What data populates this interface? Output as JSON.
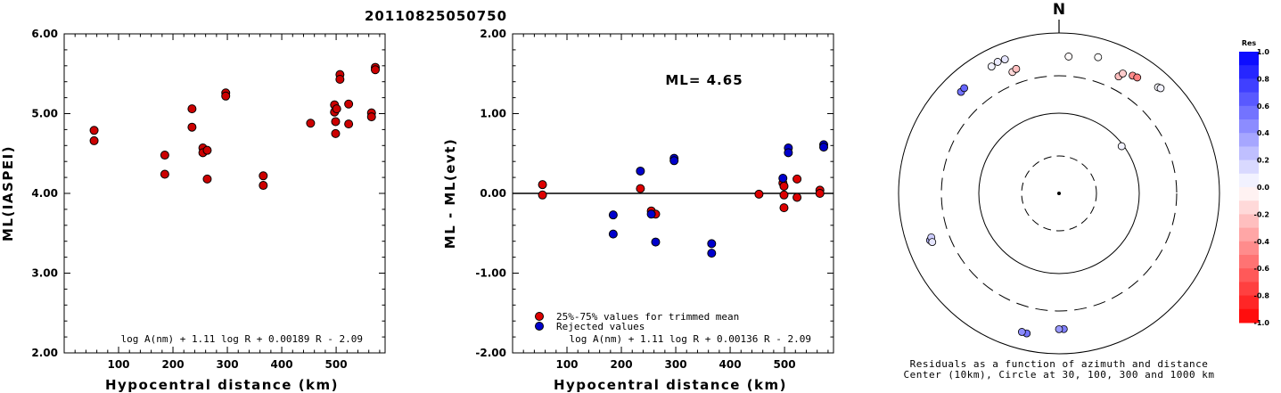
{
  "title": "20110825050750",
  "chart_data": [
    {
      "type": "scatter",
      "ylabel": "ML(IASPEI)",
      "xlabel": "Hypocentral distance (km)",
      "xlim": [
        0,
        590
      ],
      "ylim": [
        2.0,
        6.0
      ],
      "xticks": [
        100,
        200,
        300,
        400,
        500
      ],
      "xticklabels": [
        "100",
        "200",
        "300",
        "400",
        "500"
      ],
      "yticks": [
        2,
        3,
        4,
        5,
        6
      ],
      "yticklabels": [
        "2.00",
        "3.00",
        "4.00",
        "5.00",
        "6.00"
      ],
      "formula": "log A(nm) + 1.11 log R + 0.00189 R - 2.09",
      "marker_color": "#cc0000",
      "points": [
        {
          "x": 55,
          "y": 4.79
        },
        {
          "x": 55,
          "y": 4.66
        },
        {
          "x": 185,
          "y": 4.48
        },
        {
          "x": 185,
          "y": 4.24
        },
        {
          "x": 235,
          "y": 5.06
        },
        {
          "x": 235,
          "y": 4.83
        },
        {
          "x": 255,
          "y": 4.57
        },
        {
          "x": 255,
          "y": 4.51
        },
        {
          "x": 263,
          "y": 4.54
        },
        {
          "x": 263,
          "y": 4.18
        },
        {
          "x": 297,
          "y": 5.26
        },
        {
          "x": 297,
          "y": 5.22
        },
        {
          "x": 366,
          "y": 4.22
        },
        {
          "x": 366,
          "y": 4.1
        },
        {
          "x": 453,
          "y": 4.88
        },
        {
          "x": 497,
          "y": 5.11
        },
        {
          "x": 497,
          "y": 5.02
        },
        {
          "x": 499,
          "y": 4.9
        },
        {
          "x": 499,
          "y": 4.75
        },
        {
          "x": 501,
          "y": 5.06
        },
        {
          "x": 507,
          "y": 5.49
        },
        {
          "x": 507,
          "y": 5.43
        },
        {
          "x": 523,
          "y": 5.12
        },
        {
          "x": 523,
          "y": 4.87
        },
        {
          "x": 565,
          "y": 5.01
        },
        {
          "x": 565,
          "y": 4.96
        },
        {
          "x": 572,
          "y": 5.58
        },
        {
          "x": 572,
          "y": 5.55
        }
      ]
    },
    {
      "type": "scatter",
      "ylabel": "ML - ML(evt)",
      "xlabel": "Hypocentral distance (km)",
      "xlim": [
        0,
        590
      ],
      "ylim": [
        -2.0,
        2.0
      ],
      "xticks": [
        100,
        200,
        300,
        400,
        500
      ],
      "xticklabels": [
        "100",
        "200",
        "300",
        "400",
        "500"
      ],
      "yticks": [
        -2,
        -1,
        0,
        1,
        2
      ],
      "yticklabels": [
        "-2.00",
        "-1.00",
        "0.00",
        "1.00",
        "2.00"
      ],
      "annotation": "ML= 4.65",
      "formula": "log A(nm) + 1.11 log R + 0.00136 R - 2.09",
      "legend": [
        {
          "label": "25%-75% values for trimmed mean",
          "color": "#dd0000"
        },
        {
          "label": "Rejected values",
          "color": "#0000cc"
        }
      ],
      "legend_position": "bottom-left",
      "series": [
        {
          "color": "#dd0000",
          "points": [
            {
              "x": 55,
              "y": 0.11
            },
            {
              "x": 55,
              "y": -0.02
            },
            {
              "x": 235,
              "y": 0.06
            },
            {
              "x": 255,
              "y": -0.22
            },
            {
              "x": 263,
              "y": -0.26
            },
            {
              "x": 453,
              "y": -0.01
            },
            {
              "x": 497,
              "y": 0.13
            },
            {
              "x": 499,
              "y": 0.09
            },
            {
              "x": 499,
              "y": -0.02
            },
            {
              "x": 499,
              "y": -0.18
            },
            {
              "x": 523,
              "y": 0.18
            },
            {
              "x": 523,
              "y": -0.05
            },
            {
              "x": 565,
              "y": 0.04
            },
            {
              "x": 565,
              "y": 0.0
            }
          ]
        },
        {
          "color": "#0000cc",
          "points": [
            {
              "x": 185,
              "y": -0.27
            },
            {
              "x": 185,
              "y": -0.51
            },
            {
              "x": 235,
              "y": 0.28
            },
            {
              "x": 255,
              "y": -0.26
            },
            {
              "x": 263,
              "y": -0.61
            },
            {
              "x": 297,
              "y": 0.44
            },
            {
              "x": 297,
              "y": 0.41
            },
            {
              "x": 366,
              "y": -0.63
            },
            {
              "x": 366,
              "y": -0.75
            },
            {
              "x": 497,
              "y": 0.19
            },
            {
              "x": 507,
              "y": 0.57
            },
            {
              "x": 507,
              "y": 0.51
            },
            {
              "x": 572,
              "y": 0.61
            },
            {
              "x": 572,
              "y": 0.58
            }
          ]
        }
      ]
    },
    {
      "type": "scatter",
      "subtype": "polar-azimuth-distance",
      "north_label": "N",
      "caption": [
        "Residuals as a function of azimuth and distance",
        "Center (10km), Circle at 30, 100, 300 and 1000 km"
      ],
      "colorbar": {
        "title": "Res",
        "labels": [
          "1.0",
          "0.8",
          "0.6",
          "0.4",
          "0.2",
          "0.0",
          "-0.2",
          "-0.4",
          "-0.6",
          "-0.8",
          "-1.0"
        ],
        "range": [
          -1.0,
          1.0
        ],
        "positive_color": "#0000ff",
        "negative_color": "#ff0000"
      },
      "points": [
        {
          "azimuth": 4,
          "distance_km": 520,
          "res": -0.02
        },
        {
          "azimuth": 332,
          "distance_km": 625,
          "res": 0.05
        },
        {
          "azimuth": 335,
          "distance_km": 650,
          "res": 0.08
        },
        {
          "azimuth": 338,
          "distance_km": 640,
          "res": 0.1
        },
        {
          "azimuth": 316,
          "distance_km": 580,
          "res": 0.55
        },
        {
          "azimuth": 318,
          "distance_km": 590,
          "res": 0.6
        },
        {
          "azimuth": 339,
          "distance_km": 425,
          "res": -0.15
        },
        {
          "azimuth": 341,
          "distance_km": 445,
          "res": -0.25
        },
        {
          "azimuth": 16,
          "distance_km": 590,
          "res": 0.0
        },
        {
          "azimuth": 27,
          "distance_km": 440,
          "res": -0.25
        },
        {
          "azimuth": 28,
          "distance_km": 500,
          "res": -0.2
        },
        {
          "azimuth": 32,
          "distance_km": 545,
          "res": -0.45
        },
        {
          "azimuth": 34,
          "distance_km": 560,
          "res": -0.5
        },
        {
          "azimuth": 43,
          "distance_km": 650,
          "res": 0.02
        },
        {
          "azimuth": 44,
          "distance_km": 670,
          "res": 0.05
        },
        {
          "azimuth": 53,
          "distance_km": 95,
          "res": 0.05
        },
        {
          "azimuth": 250,
          "distance_km": 520,
          "res": 0.3
        },
        {
          "azimuth": 251,
          "distance_km": 490,
          "res": 0.2
        },
        {
          "azimuth": 249,
          "distance_km": 500,
          "res": 0.1
        },
        {
          "azimuth": 178,
          "distance_km": 500,
          "res": 0.5
        },
        {
          "azimuth": 180,
          "distance_km": 500,
          "res": 0.4
        },
        {
          "azimuth": 193,
          "distance_km": 625,
          "res": 0.55
        },
        {
          "azimuth": 195,
          "distance_km": 620,
          "res": 0.45
        }
      ]
    }
  ]
}
